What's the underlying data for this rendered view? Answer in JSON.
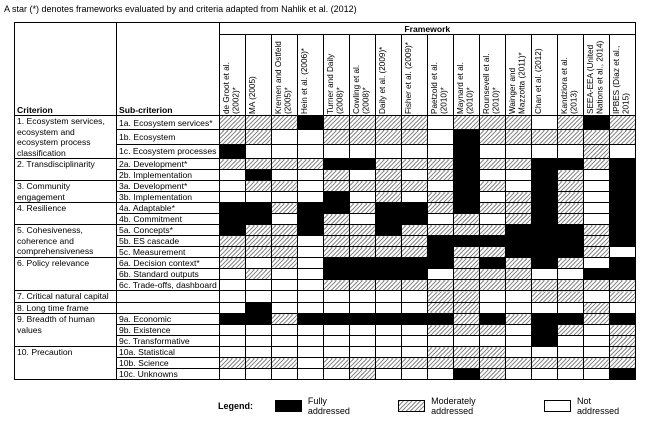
{
  "note": "A star (*) denotes frameworks evaluated by and criteria adapted from Nahlik et al. (2012)",
  "columns": {
    "criterion": "Criterion",
    "subcriterion": "Sub-criterion",
    "framework": "Framework"
  },
  "frameworks": [
    "de Groot et al. (2002)*",
    "MA (2005)",
    "Kremen and Ostfeld (2005)*",
    "Hein et al. (2006)*",
    "Turner and Daily (2008)*",
    "Cowling et al. (2008)*",
    "Daily et al. (2009)*",
    "Fisher et al. (2009)*",
    "Paetzold et al. (2010)*",
    "Maynard et al. (2010)*",
    "Rounsevell et al. (2010)*",
    "Wainger and Mazzotta (2011)*",
    "Chan et al. (2012)",
    "Kandziora et al. (2013)",
    "SEEA-EEA (United Nations et al., 2014)",
    "IPBES (Díaz et al., 2015)"
  ],
  "criteria": [
    {
      "label": "1. Ecosystem services, ecosystem and ecosystem process classification",
      "rows": [
        {
          "sub": "1a. Ecosystem services*",
          "cells": [
            "M",
            "M",
            "M",
            "F",
            "M",
            "M",
            "M",
            "M",
            "N",
            "M",
            "M",
            "M",
            "N",
            "M",
            "F",
            "M"
          ]
        },
        {
          "sub": "1b. Ecosystem",
          "cells": [
            "M",
            "M",
            "N",
            "N",
            "M",
            "M",
            "M",
            "M",
            "N",
            "F",
            "M",
            "M",
            "M",
            "M",
            "M",
            "M"
          ]
        },
        {
          "sub": "1c. Ecosystem processes",
          "cells": [
            "F",
            "N",
            "N",
            "N",
            "N",
            "N",
            "N",
            "N",
            "N",
            "F",
            "N",
            "N",
            "N",
            "N",
            "M",
            "N"
          ]
        }
      ]
    },
    {
      "label": "2. Transdisciplinarity",
      "rows": [
        {
          "sub": "2a. Development*",
          "cells": [
            "M",
            "M",
            "M",
            "M",
            "F",
            "F",
            "M",
            "M",
            "M",
            "F",
            "M",
            "M",
            "F",
            "F",
            "M",
            "F"
          ]
        },
        {
          "sub": "2b. Implementation",
          "cells": [
            "N",
            "F",
            "N",
            "N",
            "M",
            "N",
            "M",
            "N",
            "M",
            "F",
            "N",
            "N",
            "F",
            "M",
            "N",
            "F"
          ]
        }
      ]
    },
    {
      "label": "3. Community engagement",
      "rows": [
        {
          "sub": "3a. Development*",
          "cells": [
            "N",
            "M",
            "M",
            "N",
            "M",
            "M",
            "M",
            "M",
            "N",
            "F",
            "M",
            "N",
            "F",
            "M",
            "N",
            "F"
          ]
        },
        {
          "sub": "3b. Implementation",
          "cells": [
            "N",
            "N",
            "N",
            "N",
            "F",
            "N",
            "M",
            "N",
            "M",
            "F",
            "N",
            "M",
            "F",
            "M",
            "N",
            "F"
          ]
        }
      ]
    },
    {
      "label": "4. Resilience",
      "rows": [
        {
          "sub": "4a. Adaptable*",
          "cells": [
            "F",
            "F",
            "M",
            "F",
            "F",
            "M",
            "F",
            "F",
            "M",
            "F",
            "M",
            "M",
            "F",
            "M",
            "N",
            "F"
          ]
        },
        {
          "sub": "4b. Commitment",
          "cells": [
            "F",
            "F",
            "N",
            "F",
            "M",
            "N",
            "F",
            "F",
            "N",
            "M",
            "N",
            "M",
            "F",
            "M",
            "N",
            "F"
          ]
        }
      ]
    },
    {
      "label": "5. Cohesiveness, coherence and comprehensiveness",
      "rows": [
        {
          "sub": "5a. Concepts*",
          "cells": [
            "F",
            "M",
            "M",
            "F",
            "M",
            "M",
            "F",
            "M",
            "M",
            "M",
            "M",
            "F",
            "F",
            "F",
            "M",
            "F"
          ]
        },
        {
          "sub": "5b. ES cascade",
          "cells": [
            "M",
            "M",
            "M",
            "N",
            "M",
            "M",
            "M",
            "M",
            "F",
            "F",
            "F",
            "F",
            "F",
            "F",
            "M",
            "F"
          ]
        },
        {
          "sub": "5c. Measurement",
          "cells": [
            "M",
            "M",
            "M",
            "N",
            "M",
            "M",
            "M",
            "M",
            "F",
            "M",
            "M",
            "F",
            "F",
            "F",
            "M",
            "N"
          ]
        }
      ]
    },
    {
      "label": "6. Policy relevance",
      "rows": [
        {
          "sub": "6a. Decision context*",
          "cells": [
            "M",
            "N",
            "M",
            "N",
            "F",
            "F",
            "F",
            "F",
            "F",
            "M",
            "F",
            "M",
            "F",
            "M",
            "N",
            "F"
          ]
        },
        {
          "sub": "6b. Standard outputs",
          "cells": [
            "N",
            "M",
            "N",
            "N",
            "F",
            "F",
            "F",
            "F",
            "N",
            "M",
            "M",
            "M",
            "N",
            "N",
            "F",
            "F"
          ]
        },
        {
          "sub": "6c. Trade-offs, dashboard",
          "cells": [
            "N",
            "N",
            "N",
            "N",
            "M",
            "M",
            "M",
            "M",
            "M",
            "M",
            "M",
            "M",
            "M",
            "M",
            "M",
            "M"
          ]
        }
      ]
    },
    {
      "label": "7. Critical natural capital",
      "rows": [
        {
          "cells": [
            "N",
            "N",
            "N",
            "N",
            "N",
            "N",
            "N",
            "N",
            "M",
            "M",
            "N",
            "N",
            "M",
            "M",
            "N",
            "M"
          ]
        }
      ]
    },
    {
      "label": "8. Long time frame",
      "rows": [
        {
          "cells": [
            "N",
            "F",
            "N",
            "N",
            "N",
            "N",
            "N",
            "N",
            "M",
            "M",
            "N",
            "N",
            "N",
            "N",
            "M",
            "N"
          ]
        }
      ]
    },
    {
      "label": "9. Breadth of human values",
      "rows": [
        {
          "sub": "9a. Economic",
          "cells": [
            "F",
            "F",
            "M",
            "F",
            "F",
            "F",
            "F",
            "F",
            "F",
            "M",
            "F",
            "M",
            "F",
            "F",
            "M",
            "F"
          ]
        },
        {
          "sub": "9b. Existence",
          "cells": [
            "N",
            "N",
            "N",
            "N",
            "N",
            "N",
            "N",
            "N",
            "M",
            "M",
            "M",
            "N",
            "F",
            "M",
            "N",
            "M"
          ]
        },
        {
          "sub": "9c. Transformative",
          "cells": [
            "N",
            "N",
            "N",
            "N",
            "N",
            "N",
            "N",
            "N",
            "N",
            "N",
            "N",
            "N",
            "F",
            "N",
            "N",
            "M"
          ]
        }
      ]
    },
    {
      "label": "10. Precaution",
      "rows": [
        {
          "sub": "10a. Statistical",
          "cells": [
            "N",
            "N",
            "N",
            "N",
            "N",
            "N",
            "N",
            "N",
            "M",
            "M",
            "M",
            "N",
            "N",
            "N",
            "N",
            "M"
          ]
        },
        {
          "sub": "10b. Science",
          "cells": [
            "M",
            "M",
            "M",
            "N",
            "M",
            "M",
            "M",
            "M",
            "M",
            "M",
            "M",
            "M",
            "M",
            "M",
            "M",
            "M"
          ]
        },
        {
          "sub": "10c. Unknowns",
          "cells": [
            "N",
            "N",
            "N",
            "N",
            "N",
            "M",
            "N",
            "N",
            "N",
            "F",
            "M",
            "N",
            "N",
            "N",
            "N",
            "F"
          ]
        }
      ]
    }
  ],
  "legend": {
    "title": "Legend:",
    "items": [
      {
        "key": "F",
        "label": "Fully addressed"
      },
      {
        "key": "M",
        "label": "Moderately addressed"
      },
      {
        "key": "N",
        "label": "Not addressed"
      }
    ]
  }
}
